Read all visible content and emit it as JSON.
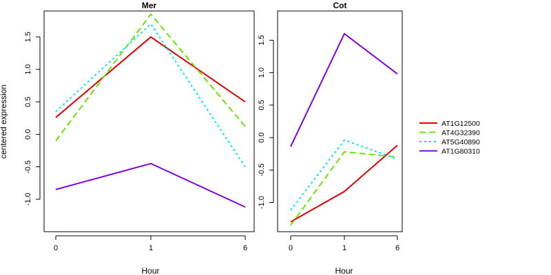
{
  "ylabel": "centered expression",
  "legend": {
    "position": "right",
    "items": [
      {
        "name": "AT1G12500",
        "color": "#dd0000",
        "dash": "solid"
      },
      {
        "name": "AT4G32390",
        "color": "#66e600",
        "dash": "dashed"
      },
      {
        "name": "AT5G40890",
        "color": "#00e6e6",
        "dash": "dotted"
      },
      {
        "name": "AT1G80310",
        "color": "#8000e6",
        "dash": "solid"
      }
    ]
  },
  "chart_data": [
    {
      "type": "line",
      "title": "Mer",
      "xlabel": "Hour",
      "x": [
        "0",
        "1",
        "6"
      ],
      "ylim": [
        -1.5,
        1.9
      ],
      "yticks": [
        "-1.0",
        "-0.5",
        "0.0",
        "0.5",
        "1.0",
        "1.5"
      ],
      "series": [
        {
          "name": "AT1G12500",
          "values": [
            0.26,
            1.5,
            0.5
          ]
        },
        {
          "name": "AT4G32390",
          "values": [
            -0.1,
            1.85,
            0.12
          ]
        },
        {
          "name": "AT5G40890",
          "values": [
            0.35,
            1.7,
            -0.5
          ]
        },
        {
          "name": "AT1G80310",
          "values": [
            -0.85,
            -0.45,
            -1.12
          ]
        }
      ]
    },
    {
      "type": "line",
      "title": "Cot",
      "xlabel": "Hour",
      "x": [
        "0",
        "1",
        "6"
      ],
      "ylim": [
        -1.45,
        1.95
      ],
      "yticks": [
        "-1.0",
        "-0.5",
        "0.0",
        "0.5",
        "1.0",
        "1.5"
      ],
      "series": [
        {
          "name": "AT1G12500",
          "values": [
            -1.3,
            -0.83,
            -0.12
          ]
        },
        {
          "name": "AT4G32390",
          "values": [
            -1.35,
            -0.22,
            -0.3
          ]
        },
        {
          "name": "AT5G40890",
          "values": [
            -1.12,
            -0.04,
            -0.33
          ]
        },
        {
          "name": "AT1G80310",
          "values": [
            -0.14,
            1.6,
            0.98
          ]
        }
      ]
    }
  ]
}
